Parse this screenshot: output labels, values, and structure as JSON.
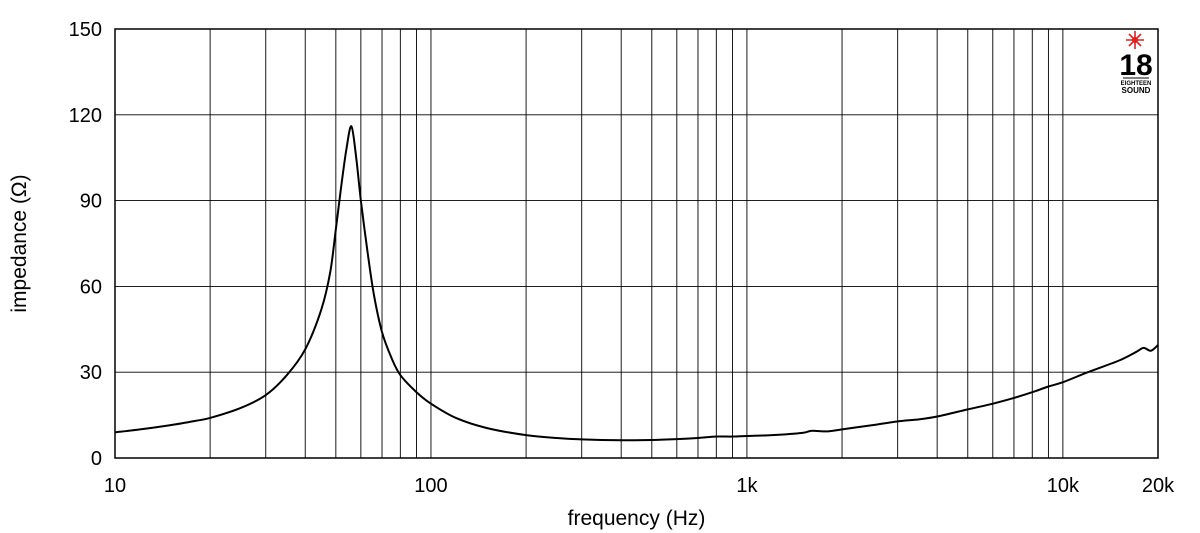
{
  "chart_data": {
    "type": "line",
    "xlabel": "frequency (Hz)",
    "ylabel": "impedance (Ω)",
    "xscale": "log",
    "xlim": [
      10,
      20000
    ],
    "ylim": [
      0,
      150
    ],
    "yticks": [
      0,
      30,
      60,
      90,
      120,
      150
    ],
    "ytick_labels": [
      "0",
      "30",
      "60",
      "90",
      "120",
      "150"
    ],
    "xticks": [
      10,
      100,
      1000,
      10000,
      20000
    ],
    "xtick_labels": [
      "10",
      "100",
      "1k",
      "10k",
      "20k"
    ],
    "grid": true,
    "line_color": "#000000",
    "series": [
      {
        "x": [
          10,
          12,
          15,
          18,
          20,
          25,
          30,
          35,
          40,
          45,
          48,
          50,
          52,
          54,
          56,
          58,
          60,
          63,
          66,
          70,
          75,
          80,
          90,
          100,
          120,
          150,
          200,
          250,
          300,
          400,
          500,
          600,
          700,
          800,
          900,
          1000,
          1200,
          1500,
          1600,
          1800,
          2000,
          2500,
          3000,
          3500,
          4000,
          5000,
          6000,
          7000,
          8000,
          9000,
          10000,
          12000,
          15000,
          17000,
          18000,
          19000,
          20000
        ],
        "y": [
          9,
          10,
          11.5,
          13,
          14,
          17.5,
          22,
          29,
          38,
          52,
          65,
          80,
          95,
          108,
          116,
          105,
          90,
          72,
          57,
          44,
          35,
          29,
          23,
          19,
          14,
          10.5,
          8,
          7,
          6.5,
          6.2,
          6.3,
          6.6,
          7,
          7.5,
          7.5,
          7.7,
          8,
          8.8,
          9.5,
          9.3,
          10,
          11.5,
          12.8,
          13.5,
          14.5,
          17,
          19,
          21,
          23,
          25,
          26.5,
          30,
          34,
          37,
          38.5,
          37.5,
          39.5
        ]
      }
    ]
  },
  "logo": {
    "number": "18",
    "small_text": "EIGHTEEN",
    "word": "SOUND",
    "star_color": "#e0201e"
  }
}
